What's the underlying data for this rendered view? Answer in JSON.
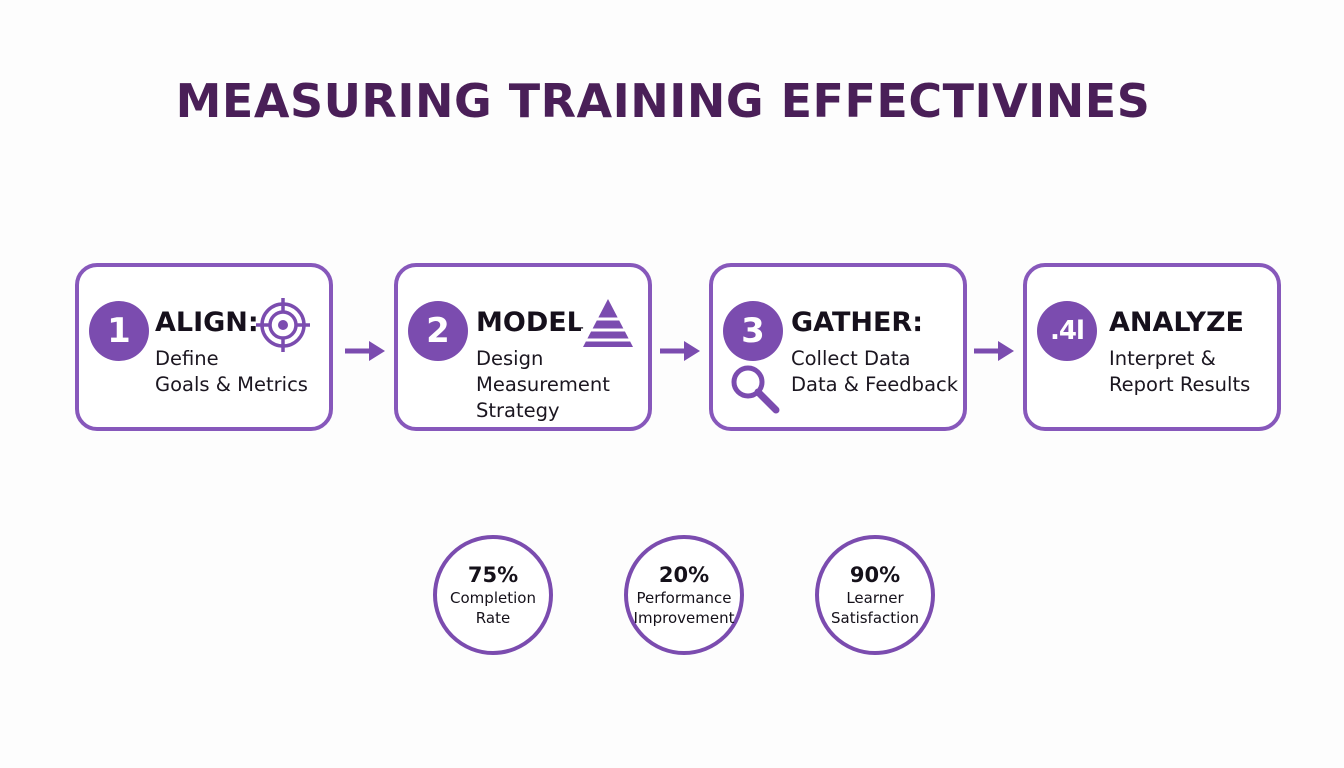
{
  "title": "MEASURING TRAINING EFFECTIVINES",
  "colors": {
    "accent": "#7b4caf",
    "border": "#8758bb",
    "title": "#4a1f58"
  },
  "steps": [
    {
      "badge": "1",
      "heading": "ALIGN:",
      "icon": "target-icon",
      "lines": [
        "Define",
        "Goals & Metrics"
      ]
    },
    {
      "badge": "2",
      "heading": "MODEL",
      "icon": "pyramid-icon",
      "lines": [
        "Design",
        "Measurement",
        "Strategy"
      ]
    },
    {
      "badge": "3",
      "heading": "GATHER:",
      "icon": "magnifier-icon",
      "lines": [
        "Collect Data",
        "Data & Feedback"
      ]
    },
    {
      "badge": ".4l",
      "heading": "ANALYZE",
      "icon": "",
      "lines": [
        "Interpret &",
        "Report Results"
      ]
    }
  ],
  "stats": [
    {
      "value": "75%",
      "label_lines": [
        "Completion",
        "Rate"
      ]
    },
    {
      "value": "20%",
      "label_lines": [
        "Performance",
        "Improvement"
      ]
    },
    {
      "value": "90%",
      "label_lines": [
        "Learner",
        "Satisfaction"
      ]
    }
  ]
}
